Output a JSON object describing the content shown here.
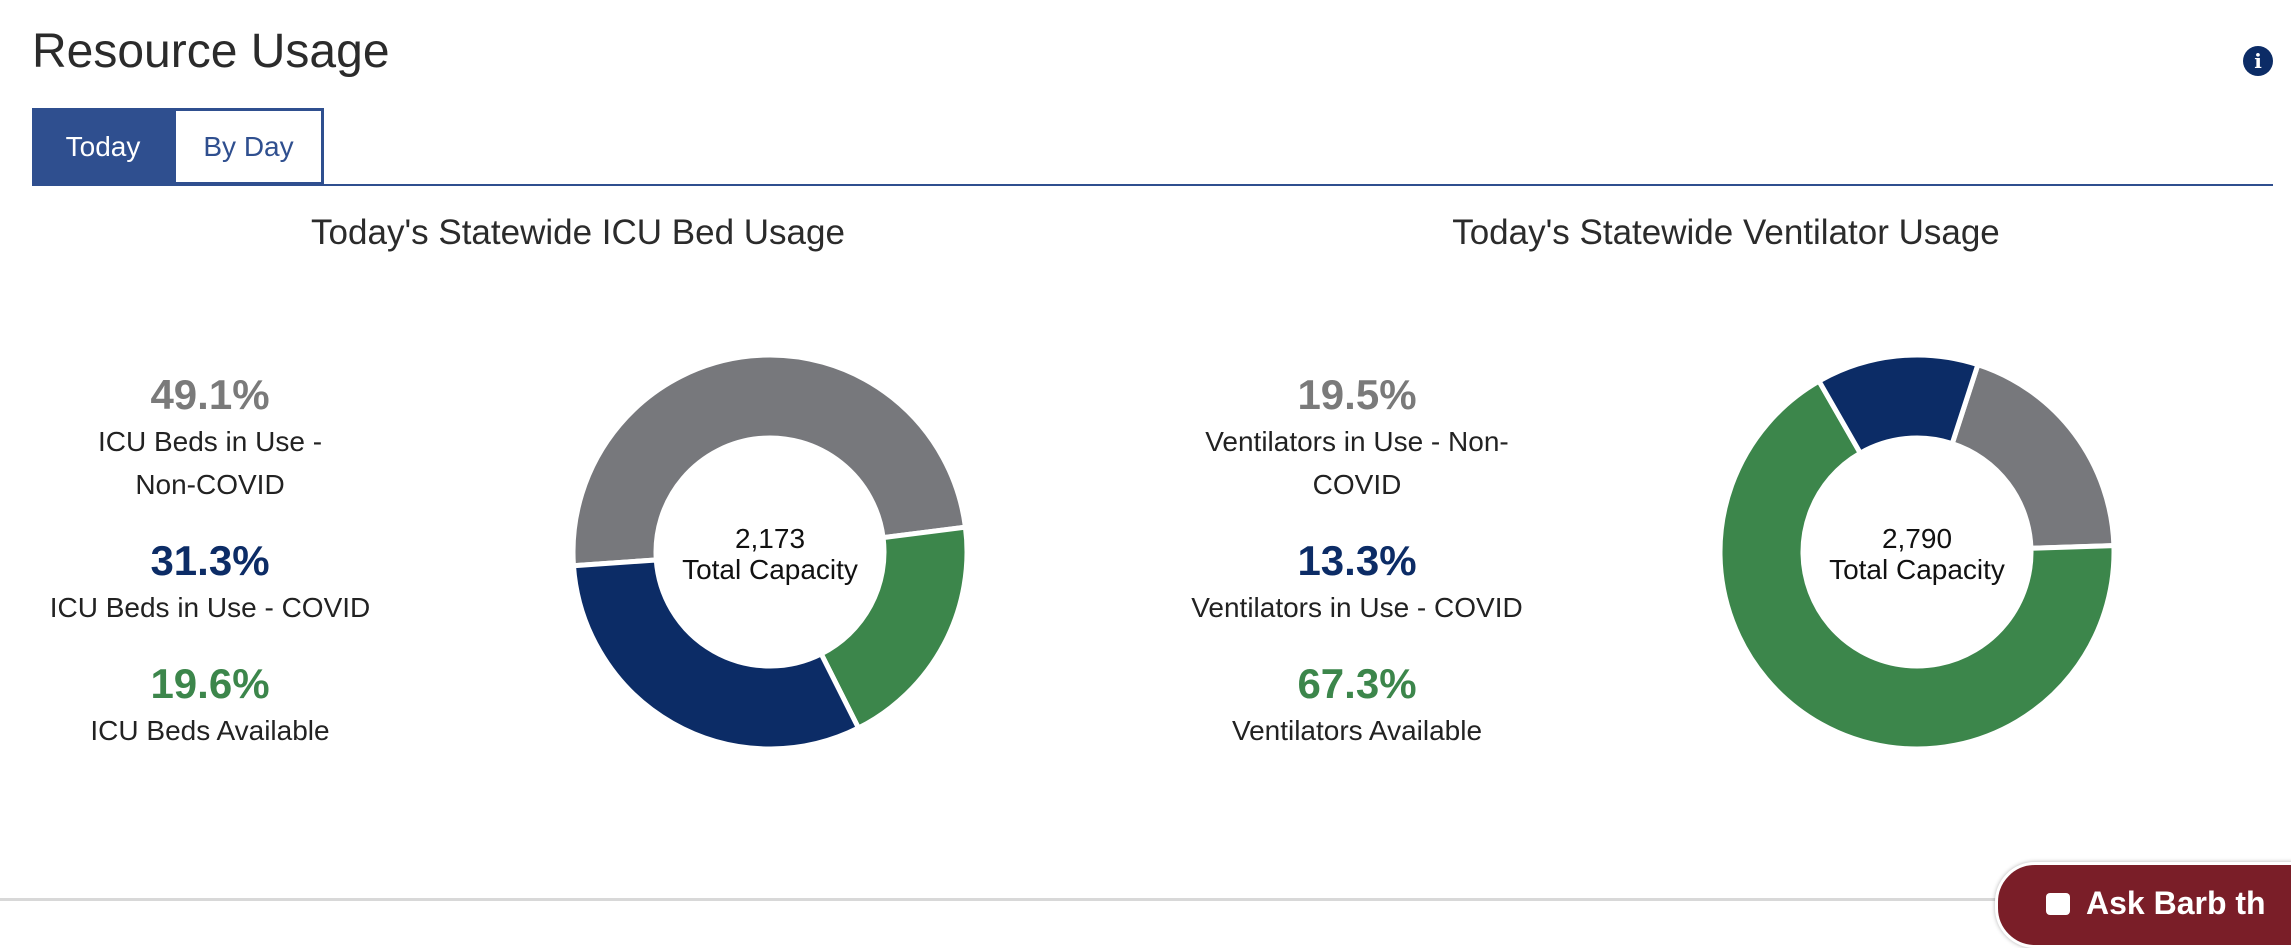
{
  "header": {
    "title": "Resource Usage",
    "info_icon": "info-icon"
  },
  "tabs": [
    {
      "label": "Today",
      "active": true
    },
    {
      "label": "By Day",
      "active": false
    }
  ],
  "colors": {
    "navy": "#0c2c66",
    "green": "#3c864b",
    "gray": "#77787c",
    "pct_gray": "#7a7a7a",
    "tab_blue": "#2f4f8f",
    "chat_red": "#7a1e28"
  },
  "icu": {
    "title": "Today's Statewide ICU Bed Usage",
    "stats": [
      {
        "pct": "49.1%",
        "label": "ICU Beds in Use - Non-COVID",
        "color": "#7a7a7a"
      },
      {
        "pct": "31.3%",
        "label": "ICU Beds in Use - COVID",
        "color": "#0c2c66"
      },
      {
        "pct": "19.6%",
        "label": "ICU Beds Available",
        "color": "#3c864b"
      }
    ],
    "center_value": "2,173",
    "center_label": "Total Capacity"
  },
  "ventilator": {
    "title": "Today's Statewide Ventilator Usage",
    "stats": [
      {
        "pct": "19.5%",
        "label": "Ventilators in Use - Non-COVID",
        "color": "#7a7a7a"
      },
      {
        "pct": "13.3%",
        "label": "Ventilators in Use - COVID",
        "color": "#0c2c66"
      },
      {
        "pct": "67.3%",
        "label": "Ventilators Available",
        "color": "#3c864b"
      }
    ],
    "center_value": "2,790",
    "center_label": "Total Capacity"
  },
  "chart_data": [
    {
      "type": "pie",
      "title": "Today's Statewide ICU Bed Usage",
      "categories": [
        "ICU Beds in Use - Non-COVID",
        "ICU Beds Available",
        "ICU Beds in Use - COVID"
      ],
      "values": [
        49.1,
        19.6,
        31.3
      ],
      "colors": [
        "#77787c",
        "#3c864b",
        "#0c2c66"
      ],
      "start_angle_deg": -94,
      "total_capacity": 2173
    },
    {
      "type": "pie",
      "title": "Today's Statewide Ventilator Usage",
      "categories": [
        "Ventilators in Use - Non-COVID",
        "Ventilators Available",
        "Ventilators in Use - COVID"
      ],
      "values": [
        19.5,
        67.3,
        13.3
      ],
      "colors": [
        "#77787c",
        "#3c864b",
        "#0c2c66"
      ],
      "start_angle_deg": 18,
      "total_capacity": 2790
    }
  ],
  "chat": {
    "label": "Ask Barb th",
    "icon": "chat-bubble-icon"
  }
}
